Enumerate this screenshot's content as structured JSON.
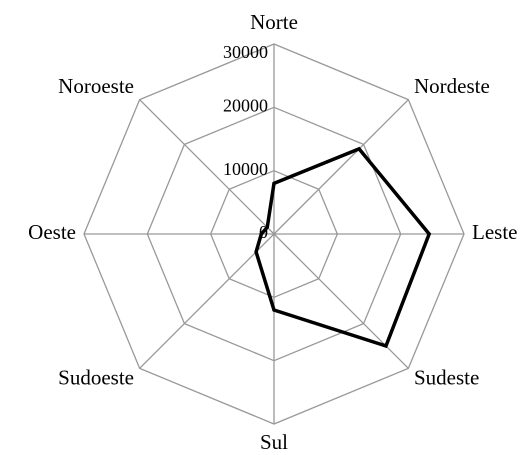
{
  "chart_data": {
    "type": "radar",
    "categories": [
      "Norte",
      "Nordeste",
      "Leste",
      "Sudeste",
      "Sul",
      "Sudoeste",
      "Oeste",
      "Noroeste"
    ],
    "series": [
      {
        "color": "#000000",
        "values": [
          8000,
          19000,
          24500,
          25000,
          12000,
          4000,
          2000,
          1500
        ]
      }
    ],
    "ylim": [
      0,
      30000
    ],
    "yticks": [
      0,
      10000,
      20000,
      30000
    ],
    "grid": true,
    "grid_color": "#999999"
  }
}
